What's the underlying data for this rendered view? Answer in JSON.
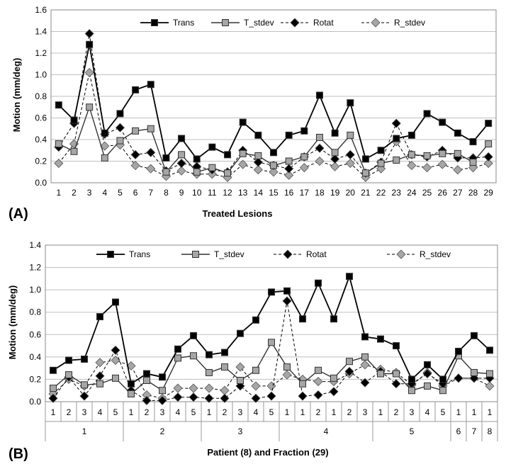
{
  "chart_data": [
    {
      "type": "line",
      "panel_label": "(A)",
      "xlabel": "Treated Lesions",
      "ylabel": "Motion (mm/deg)",
      "ylim": [
        0,
        1.6
      ],
      "yticks": [
        "0.0",
        "0.2",
        "0.4",
        "0.6",
        "0.8",
        "1.0",
        "1.2",
        "1.4",
        "1.6"
      ],
      "categories": [
        "1",
        "2",
        "3",
        "4",
        "5",
        "6",
        "7",
        "8",
        "9",
        "10",
        "11",
        "12",
        "13",
        "14",
        "15",
        "16",
        "17",
        "18",
        "19",
        "20",
        "21",
        "22",
        "23",
        "24",
        "25",
        "26",
        "27",
        "28",
        "29"
      ],
      "grid": true,
      "legend_position": "top",
      "series": [
        {
          "name": "Trans",
          "values": [
            0.72,
            0.58,
            1.28,
            0.46,
            0.64,
            0.86,
            0.91,
            0.23,
            0.41,
            0.22,
            0.33,
            0.26,
            0.56,
            0.44,
            0.28,
            0.44,
            0.48,
            0.81,
            0.46,
            0.74,
            0.22,
            0.3,
            0.41,
            0.44,
            0.64,
            0.56,
            0.46,
            0.38,
            0.55
          ]
        },
        {
          "name": "T_stdev",
          "values": [
            0.36,
            0.29,
            0.7,
            0.23,
            0.39,
            0.48,
            0.5,
            0.1,
            0.26,
            0.1,
            0.14,
            0.09,
            0.27,
            0.25,
            0.16,
            0.2,
            0.24,
            0.42,
            0.28,
            0.44,
            0.09,
            0.18,
            0.21,
            0.26,
            0.25,
            0.27,
            0.27,
            0.19,
            0.36
          ]
        },
        {
          "name": "Rotat",
          "values": [
            0.33,
            0.55,
            1.38,
            0.45,
            0.51,
            0.26,
            0.28,
            0.11,
            0.18,
            0.15,
            0.12,
            0.1,
            0.3,
            0.19,
            0.16,
            0.13,
            0.24,
            0.32,
            0.22,
            0.26,
            0.09,
            0.19,
            0.55,
            0.26,
            0.24,
            0.3,
            0.23,
            0.23,
            0.24
          ]
        },
        {
          "name": "R_stdev",
          "values": [
            0.18,
            0.36,
            1.02,
            0.34,
            0.35,
            0.16,
            0.13,
            0.06,
            0.11,
            0.08,
            0.08,
            0.05,
            0.17,
            0.12,
            0.1,
            0.07,
            0.14,
            0.2,
            0.15,
            0.18,
            0.05,
            0.13,
            0.38,
            0.16,
            0.14,
            0.17,
            0.12,
            0.14,
            0.18
          ]
        }
      ]
    },
    {
      "type": "line",
      "panel_label": "(B)",
      "xlabel": "Patient (8) and Fraction (29)",
      "ylabel": "Motion (mm/deg)",
      "ylim": [
        0,
        1.4
      ],
      "yticks": [
        "0.0",
        "0.2",
        "0.4",
        "0.6",
        "0.8",
        "1.0",
        "1.2",
        "1.4"
      ],
      "fractions": [
        "1",
        "2",
        "3",
        "4",
        "5",
        "1",
        "2",
        "3",
        "4",
        "5",
        "1",
        "2",
        "3",
        "4",
        "5",
        "1",
        "1",
        "2",
        "1",
        "2",
        "3",
        "1",
        "2",
        "3",
        "4",
        "5",
        "1",
        "1",
        "1"
      ],
      "patients": [
        {
          "label": "1",
          "count": 5
        },
        {
          "label": "2",
          "count": 5
        },
        {
          "label": "3",
          "count": 5
        },
        {
          "label": "4",
          "count": 6
        },
        {
          "label": "5",
          "count": 5
        },
        {
          "label": "6",
          "count": 1
        },
        {
          "label": "7",
          "count": 1
        },
        {
          "label": "8",
          "count": 1
        }
      ],
      "grid": true,
      "legend_position": "top",
      "series": [
        {
          "name": "Trans",
          "values": [
            0.28,
            0.37,
            0.38,
            0.76,
            0.89,
            0.16,
            0.25,
            0.22,
            0.47,
            0.59,
            0.42,
            0.44,
            0.61,
            0.73,
            0.98,
            0.99,
            0.74,
            1.06,
            0.74,
            1.12,
            0.58,
            0.56,
            0.5,
            0.2,
            0.33,
            0.2,
            0.45,
            0.59,
            0.46
          ]
        },
        {
          "name": "T_stdev",
          "values": [
            0.12,
            0.24,
            0.15,
            0.16,
            0.21,
            0.07,
            0.19,
            0.1,
            0.39,
            0.41,
            0.26,
            0.31,
            0.19,
            0.28,
            0.53,
            0.31,
            0.16,
            0.28,
            0.21,
            0.36,
            0.4,
            0.25,
            0.25,
            0.1,
            0.14,
            0.1,
            0.41,
            0.26,
            0.25
          ]
        },
        {
          "name": "Rotat",
          "values": [
            0.03,
            0.22,
            0.05,
            0.23,
            0.46,
            0.1,
            0.01,
            0.01,
            0.04,
            0.04,
            0.03,
            0.03,
            0.14,
            0.03,
            0.05,
            0.9,
            0.05,
            0.06,
            0.09,
            0.27,
            0.17,
            0.27,
            0.16,
            0.16,
            0.25,
            0.16,
            0.21,
            0.21,
            0.21
          ]
        },
        {
          "name": "R_stdev",
          "values": [
            0.07,
            0.2,
            0.14,
            0.35,
            0.37,
            0.32,
            0.06,
            0.03,
            0.12,
            0.12,
            0.12,
            0.1,
            0.31,
            0.14,
            0.14,
            0.24,
            0.2,
            0.18,
            0.18,
            0.25,
            0.33,
            0.29,
            0.26,
            0.15,
            0.26,
            0.14,
            0.21,
            0.21,
            0.14
          ]
        }
      ]
    }
  ]
}
